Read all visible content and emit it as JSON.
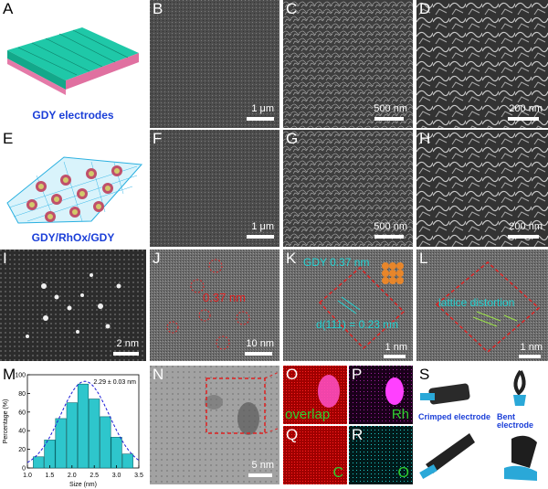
{
  "panels": {
    "A": {
      "letter": "A",
      "caption": "GDY electrodes"
    },
    "B": {
      "letter": "B",
      "scalebar": "1 μm"
    },
    "C": {
      "letter": "C",
      "scalebar": "500 nm"
    },
    "D": {
      "letter": "D",
      "scalebar": "200 nm"
    },
    "E": {
      "letter": "E",
      "caption": "GDY/RhOx/GDY"
    },
    "F": {
      "letter": "F",
      "scalebar": "1 μm"
    },
    "G": {
      "letter": "G",
      "scalebar": "500 nm"
    },
    "H": {
      "letter": "H",
      "scalebar": "200 nm"
    },
    "I": {
      "letter": "I",
      "scalebar": "2 nm"
    },
    "J": {
      "letter": "J",
      "scalebar": "10 nm",
      "annotation": "0.37 nm"
    },
    "K": {
      "letter": "K",
      "scalebar": "1 nm",
      "annotation_top": "GDY 0.37 nm",
      "annotation_bottom": "d(111) = 0.23 nm"
    },
    "L": {
      "letter": "L",
      "scalebar": "1 nm",
      "annotation": "lattice distortion"
    },
    "M": {
      "letter": "M"
    },
    "N": {
      "letter": "N",
      "scalebar": "5 nm"
    },
    "O": {
      "letter": "O",
      "label": "overlap"
    },
    "P": {
      "letter": "P",
      "label": "Rh"
    },
    "Q": {
      "letter": "Q",
      "label": "C"
    },
    "R": {
      "letter": "R",
      "label": "O"
    },
    "S": {
      "letter": "S",
      "caption_left": "Crimped electrode",
      "caption_right": "Bent electrode"
    }
  },
  "colors": {
    "caption_blue": "#1a3ed8",
    "annot_red": "#e02020",
    "annot_cyan": "#22d4d4",
    "bar_cyan": "#2ec6cc",
    "green_label": "#2fd02f"
  },
  "chart_data": {
    "type": "bar",
    "ylabel": "Percentage (%)",
    "xlabel": "Size (nm)",
    "annotation": "2.29 ± 0.03 nm",
    "x": [
      1.25,
      1.5,
      1.75,
      2.0,
      2.25,
      2.5,
      2.75,
      3.0,
      3.25
    ],
    "values": [
      12,
      30,
      53,
      70,
      90,
      74,
      55,
      33,
      15
    ],
    "xlim": [
      1.0,
      3.5
    ],
    "ylim": [
      0,
      100
    ],
    "xticks": [
      "1.0",
      "1.5",
      "2.0",
      "2.5",
      "3.0",
      "3.5"
    ],
    "yticks": [
      "0",
      "20",
      "40",
      "60",
      "80",
      "100"
    ],
    "fit": "gaussian"
  }
}
